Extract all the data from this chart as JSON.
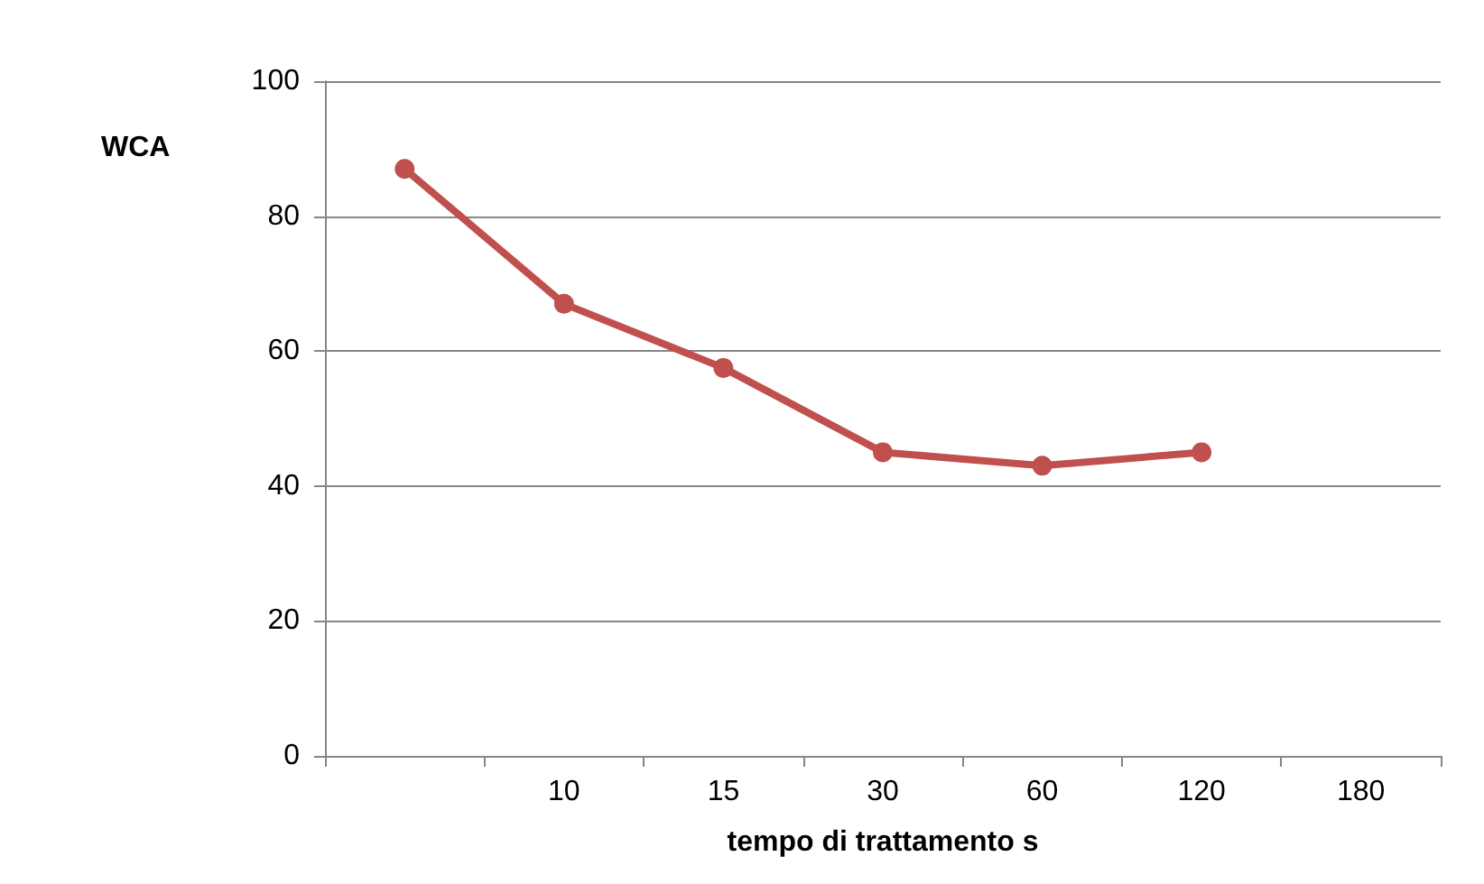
{
  "chart_data": {
    "type": "line",
    "xlabel": "tempo di trattamento s",
    "ylabel": "WCA",
    "categories": [
      null,
      "10",
      "15",
      "30",
      "60",
      "120",
      "180"
    ],
    "series": [
      {
        "color": "#c0504d",
        "values": [
          87,
          67,
          57.5,
          45,
          43,
          45,
          null
        ]
      }
    ],
    "ylim": [
      0,
      100
    ],
    "yticks": [
      0,
      20,
      40,
      60,
      80,
      100
    ],
    "grid": "y",
    "marker": "circle",
    "line_style": "solid"
  }
}
